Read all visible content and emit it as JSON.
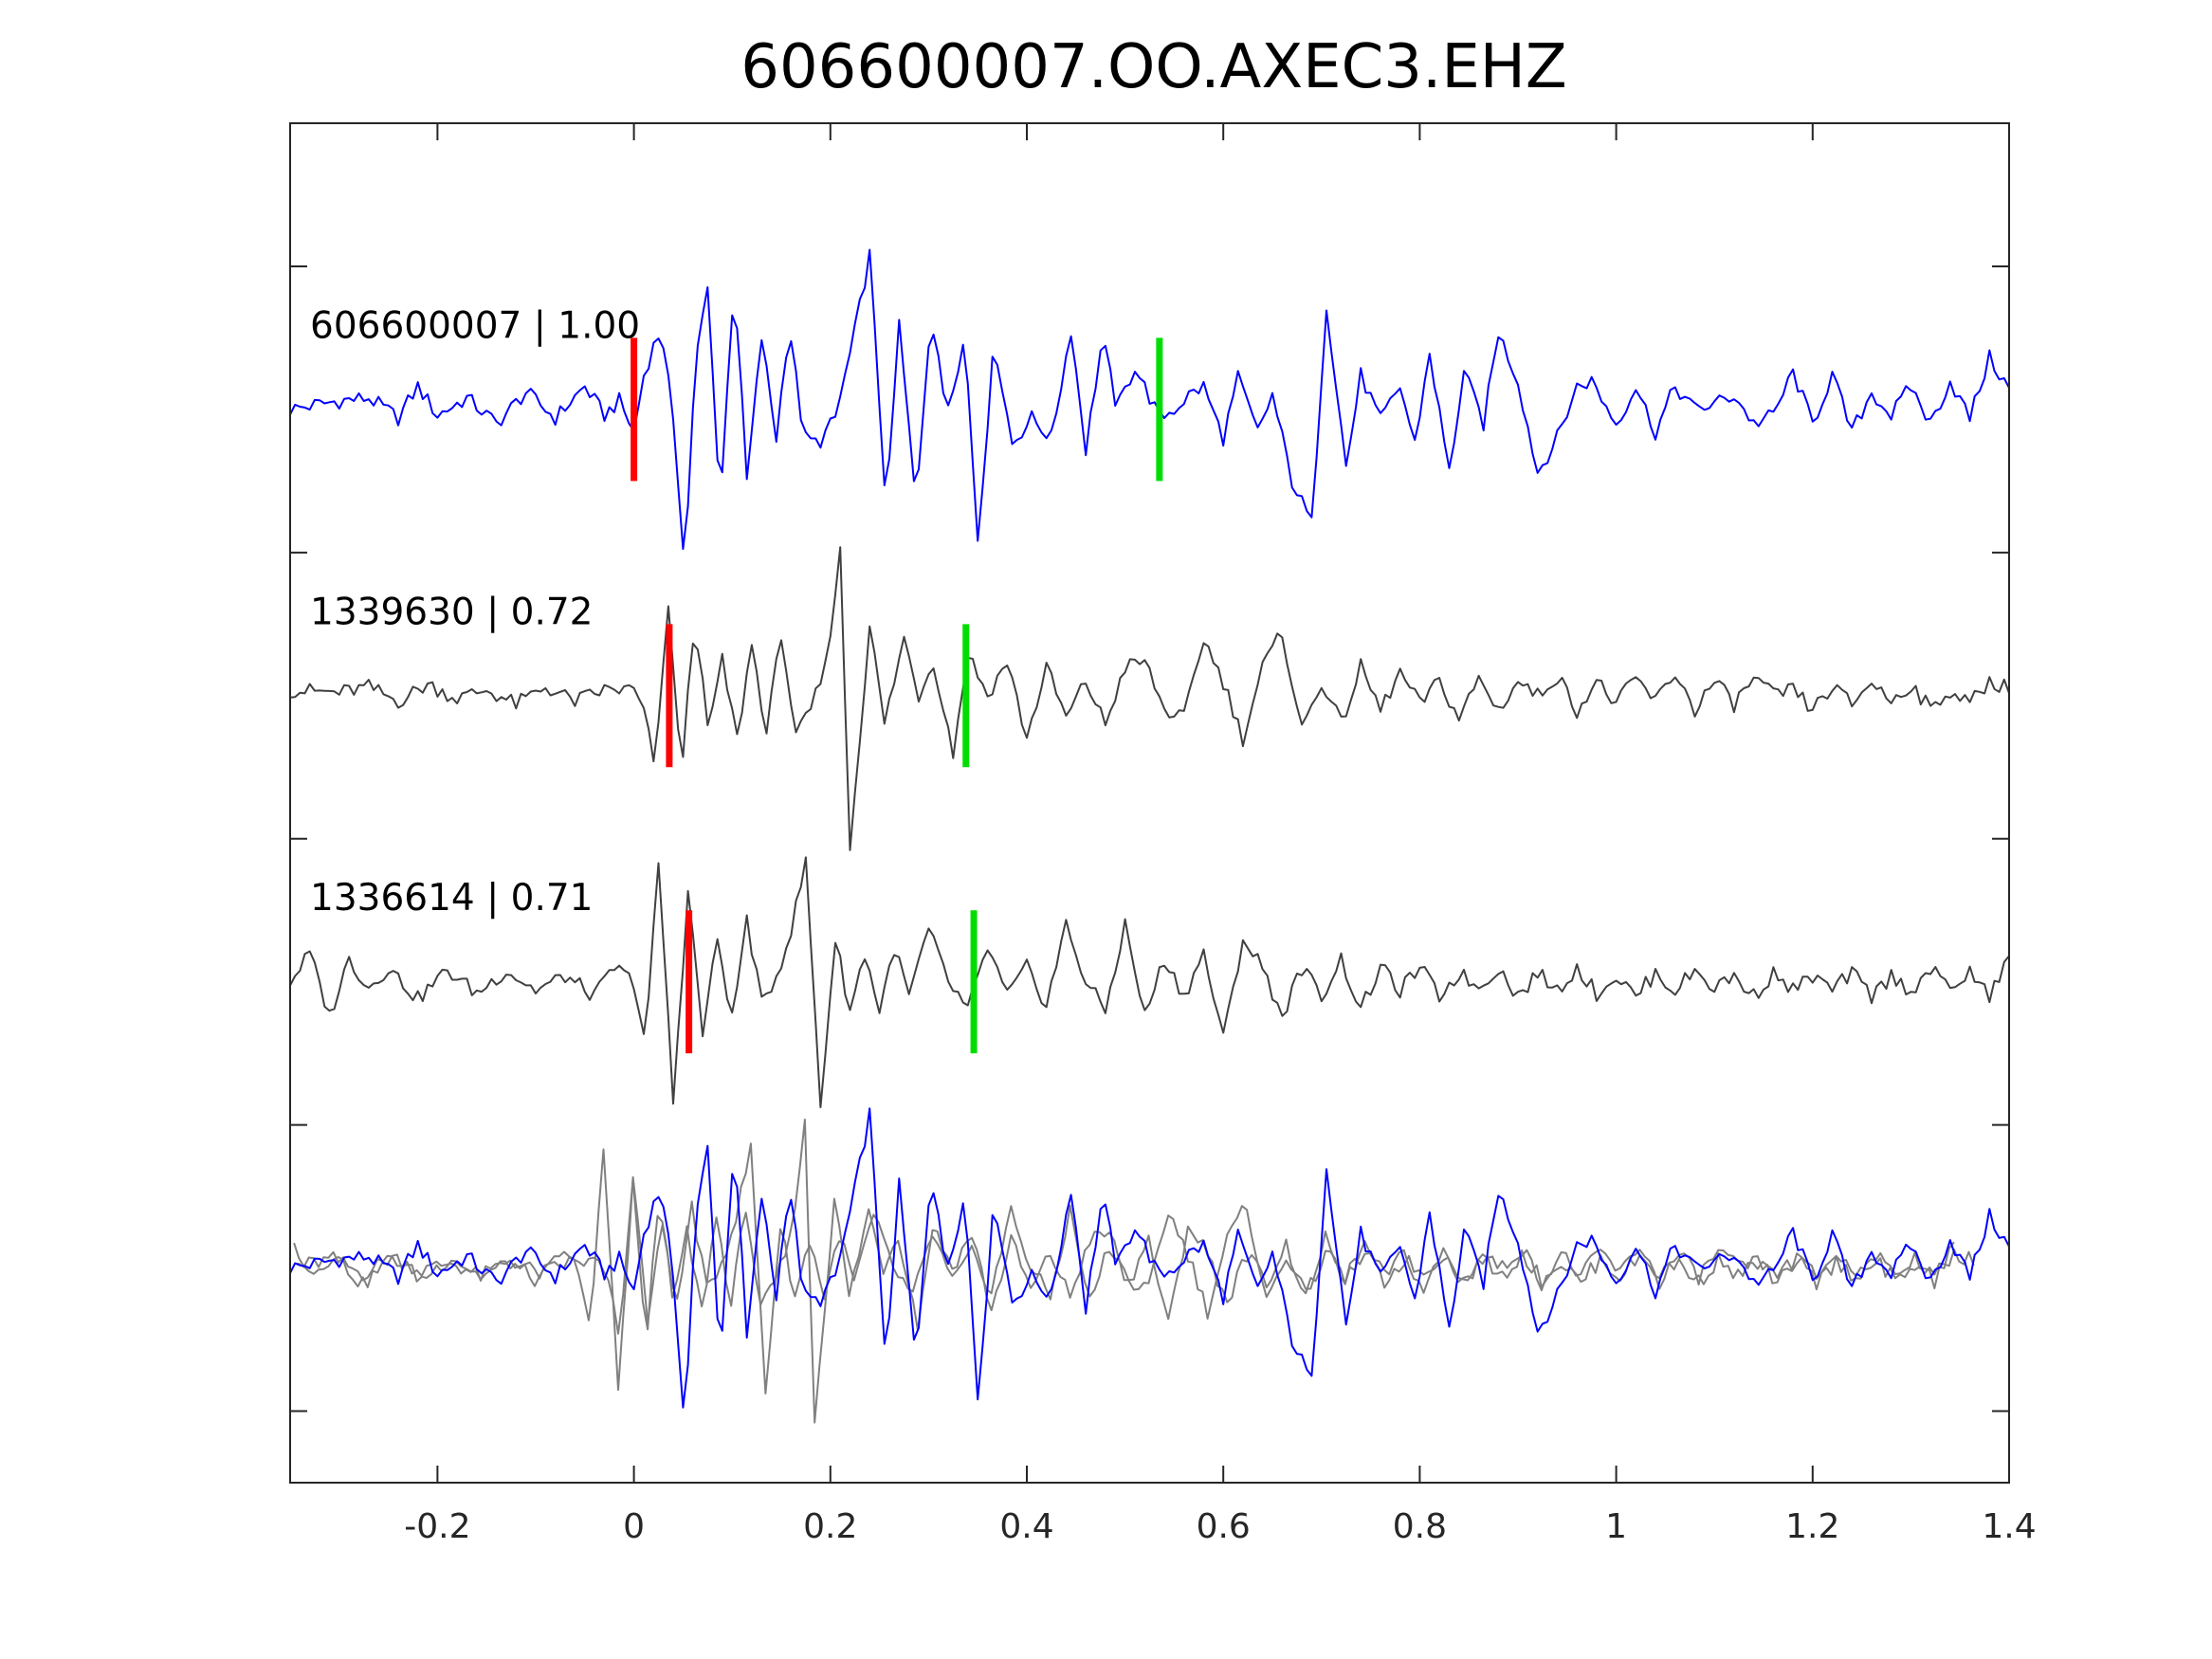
{
  "chart_data": {
    "type": "line",
    "title": "606600007.OO.AXEC3.EHZ",
    "xlabel": "",
    "ylabel": "",
    "xlim": [
      -0.35,
      1.4
    ],
    "xticks": [
      -0.2,
      0,
      0.2,
      0.4,
      0.6,
      0.8,
      1,
      1.2,
      1.4
    ],
    "xtick_labels": [
      "-0.2",
      "0",
      "0.2",
      "0.4",
      "0.6",
      "0.8",
      "1",
      "1.2",
      "1.4"
    ],
    "ylim": [
      0,
      4.75
    ],
    "yticks": [
      0.25,
      1.25,
      2.25,
      3.25,
      4.25
    ],
    "grid": false,
    "legend": "none",
    "colors": {
      "master": "#0000ff",
      "neighbor": "#404040",
      "overlay_neighbor": "#808080",
      "pick_p": "#ff0000",
      "pick_s": "#00dd00"
    },
    "sample_interval": 0.005,
    "trace_labels": [
      {
        "text": "606600007 | 1.00",
        "baseline": 3.75
      },
      {
        "text": "1339630 | 0.72",
        "baseline": 2.75
      },
      {
        "text": "1336614 | 0.71",
        "baseline": 1.75
      }
    ],
    "picks": [
      {
        "trace": "606600007",
        "phase": "P",
        "x": 0.0,
        "baseline": 3.75
      },
      {
        "trace": "606600007",
        "phase": "S",
        "x": 0.535,
        "baseline": 3.75
      },
      {
        "trace": "1339630",
        "phase": "P",
        "x": 0.036,
        "baseline": 2.75
      },
      {
        "trace": "1339630",
        "phase": "S",
        "x": 0.338,
        "baseline": 2.75
      },
      {
        "trace": "1336614",
        "phase": "P",
        "x": 0.056,
        "baseline": 1.75
      },
      {
        "trace": "1336614",
        "phase": "S",
        "x": 0.346,
        "baseline": 1.75
      }
    ],
    "series": [
      {
        "id": "606600007",
        "baseline": 3.75,
        "shift": 0,
        "knots": [
          [
            -0.35,
            0.0
          ],
          [
            -0.3,
            0.03
          ],
          [
            -0.27,
            0.04
          ],
          [
            -0.24,
            -0.03
          ],
          [
            -0.22,
            0.08
          ],
          [
            -0.2,
            -0.02
          ],
          [
            -0.17,
            0.04
          ],
          [
            -0.14,
            -0.05
          ],
          [
            -0.11,
            0.06
          ],
          [
            -0.08,
            -0.03
          ],
          [
            -0.05,
            0.08
          ],
          [
            -0.03,
            -0.02
          ],
          [
            -0.015,
            0.03
          ],
          [
            0.0,
            -0.08
          ],
          [
            0.01,
            0.12
          ],
          [
            0.02,
            0.22
          ],
          [
            0.028,
            0.28
          ],
          [
            0.037,
            0.05
          ],
          [
            0.045,
            -0.25
          ],
          [
            0.052,
            -0.55
          ],
          [
            0.062,
            0.15
          ],
          [
            0.075,
            0.42
          ],
          [
            0.088,
            -0.33
          ],
          [
            0.102,
            0.46
          ],
          [
            0.115,
            -0.25
          ],
          [
            0.13,
            0.25
          ],
          [
            0.145,
            -0.1
          ],
          [
            0.158,
            0.3
          ],
          [
            0.173,
            -0.1
          ],
          [
            0.188,
            -0.12
          ],
          [
            0.205,
            -0.03
          ],
          [
            0.222,
            0.22
          ],
          [
            0.24,
            0.54
          ],
          [
            0.257,
            -0.35
          ],
          [
            0.27,
            0.3
          ],
          [
            0.287,
            -0.33
          ],
          [
            0.302,
            0.33
          ],
          [
            0.318,
            0.0
          ],
          [
            0.337,
            0.25
          ],
          [
            0.35,
            -0.45
          ],
          [
            0.367,
            0.24
          ],
          [
            0.385,
            -0.12
          ],
          [
            0.405,
            -0.03
          ],
          [
            0.425,
            -0.1
          ],
          [
            0.445,
            0.28
          ],
          [
            0.46,
            -0.14
          ],
          [
            0.477,
            0.25
          ],
          [
            0.492,
            0.0
          ],
          [
            0.51,
            0.15
          ],
          [
            0.535,
            -0.03
          ],
          [
            0.55,
            0.0
          ],
          [
            0.565,
            0.05
          ],
          [
            0.58,
            0.08
          ],
          [
            0.6,
            -0.1
          ],
          [
            0.615,
            0.11
          ],
          [
            0.635,
            -0.08
          ],
          [
            0.65,
            0.05
          ],
          [
            0.67,
            -0.25
          ],
          [
            0.69,
            -0.4
          ],
          [
            0.705,
            0.37
          ],
          [
            0.725,
            -0.2
          ],
          [
            0.74,
            0.12
          ],
          [
            0.76,
            -0.04
          ],
          [
            0.78,
            0.08
          ],
          [
            0.795,
            -0.12
          ],
          [
            0.81,
            0.2
          ],
          [
            0.83,
            -0.22
          ],
          [
            0.845,
            0.13
          ],
          [
            0.865,
            -0.05
          ],
          [
            0.88,
            0.27
          ],
          [
            0.9,
            0.1
          ],
          [
            0.92,
            -0.22
          ],
          [
            0.94,
            -0.1
          ],
          [
            0.96,
            0.08
          ],
          [
            0.975,
            0.1
          ],
          [
            1.0,
            -0.05
          ],
          [
            1.02,
            0.08
          ],
          [
            1.04,
            -0.08
          ],
          [
            1.06,
            0.08
          ],
          [
            1.08,
            0.0
          ],
          [
            1.1,
            0.02
          ],
          [
            1.12,
            0.05
          ],
          [
            1.14,
            -0.05
          ],
          [
            1.16,
            -0.02
          ],
          [
            1.18,
            0.13
          ],
          [
            1.2,
            -0.05
          ],
          [
            1.22,
            0.12
          ],
          [
            1.24,
            -0.08
          ],
          [
            1.26,
            0.06
          ],
          [
            1.28,
            -0.02
          ],
          [
            1.3,
            0.08
          ],
          [
            1.32,
            -0.05
          ],
          [
            1.34,
            0.1
          ],
          [
            1.36,
            -0.03
          ],
          [
            1.38,
            0.18
          ],
          [
            1.4,
            0.07
          ]
        ]
      },
      {
        "id": "1339630",
        "baseline": 2.75,
        "shift": 0.036,
        "knots": [
          [
            -0.35,
            0.02
          ],
          [
            -0.3,
            0.01
          ],
          [
            -0.27,
            0.03
          ],
          [
            -0.24,
            -0.02
          ],
          [
            -0.21,
            0.04
          ],
          [
            -0.18,
            -0.01
          ],
          [
            -0.15,
            0.02
          ],
          [
            -0.12,
            -0.03
          ],
          [
            -0.09,
            0.03
          ],
          [
            -0.06,
            -0.02
          ],
          [
            -0.03,
            0.02
          ],
          [
            0.0,
            0.02
          ],
          [
            0.01,
            -0.06
          ],
          [
            0.022,
            -0.25
          ],
          [
            0.035,
            0.33
          ],
          [
            0.048,
            -0.28
          ],
          [
            0.062,
            0.28
          ],
          [
            0.075,
            -0.12
          ],
          [
            0.09,
            0.12
          ],
          [
            0.105,
            -0.15
          ],
          [
            0.12,
            0.18
          ],
          [
            0.135,
            -0.13
          ],
          [
            0.15,
            0.22
          ],
          [
            0.165,
            -0.15
          ],
          [
            0.18,
            -0.05
          ],
          [
            0.195,
            0.1
          ],
          [
            0.21,
            0.5
          ],
          [
            0.22,
            -0.53
          ],
          [
            0.24,
            0.25
          ],
          [
            0.255,
            -0.1
          ],
          [
            0.275,
            0.2
          ],
          [
            0.29,
            0.0
          ],
          [
            0.305,
            0.12
          ],
          [
            0.325,
            -0.2
          ],
          [
            0.34,
            0.15
          ],
          [
            0.36,
            0.0
          ],
          [
            0.38,
            0.12
          ],
          [
            0.4,
            -0.15
          ],
          [
            0.42,
            0.1
          ],
          [
            0.44,
            -0.08
          ],
          [
            0.46,
            0.05
          ],
          [
            0.48,
            -0.1
          ],
          [
            0.5,
            0.1
          ],
          [
            0.52,
            0.12
          ],
          [
            0.54,
            -0.05
          ],
          [
            0.56,
            -0.08
          ],
          [
            0.58,
            0.2
          ],
          [
            0.6,
            0.05
          ],
          [
            0.62,
            -0.15
          ],
          [
            0.64,
            0.1
          ],
          [
            0.66,
            0.22
          ],
          [
            0.68,
            -0.12
          ],
          [
            0.7,
            0.05
          ],
          [
            0.72,
            -0.1
          ],
          [
            0.74,
            0.1
          ],
          [
            0.76,
            -0.05
          ],
          [
            0.78,
            0.08
          ],
          [
            0.8,
            -0.03
          ],
          [
            0.82,
            0.05
          ],
          [
            0.84,
            -0.08
          ],
          [
            0.86,
            0.06
          ],
          [
            0.88,
            -0.05
          ],
          [
            0.9,
            0.05
          ],
          [
            0.92,
            0.0
          ],
          [
            0.94,
            0.07
          ],
          [
            0.96,
            -0.05
          ],
          [
            0.98,
            0.05
          ],
          [
            1.0,
            -0.03
          ],
          [
            1.02,
            0.06
          ],
          [
            1.04,
            -0.02
          ],
          [
            1.06,
            0.08
          ],
          [
            1.08,
            -0.05
          ],
          [
            1.1,
            0.05
          ],
          [
            1.12,
            -0.03
          ],
          [
            1.14,
            0.06
          ],
          [
            1.16,
            0.0
          ],
          [
            1.18,
            0.02
          ],
          [
            1.2,
            -0.05
          ],
          [
            1.22,
            0.03
          ],
          [
            1.24,
            -0.03
          ],
          [
            1.26,
            0.05
          ],
          [
            1.28,
            -0.02
          ],
          [
            1.3,
            0.04
          ],
          [
            1.32,
            -0.05
          ],
          [
            1.34,
            0.02
          ],
          [
            1.36,
            -0.03
          ],
          [
            1.38,
            0.05
          ],
          [
            1.4,
            0.03
          ]
        ]
      },
      {
        "id": "1336614",
        "baseline": 1.75,
        "shift": 0.056,
        "knots": [
          [
            -0.35,
            0.0
          ],
          [
            -0.33,
            0.1
          ],
          [
            -0.31,
            -0.12
          ],
          [
            -0.29,
            0.08
          ],
          [
            -0.27,
            -0.02
          ],
          [
            -0.25,
            0.05
          ],
          [
            -0.22,
            -0.06
          ],
          [
            -0.19,
            0.04
          ],
          [
            -0.16,
            -0.04
          ],
          [
            -0.13,
            0.04
          ],
          [
            -0.1,
            -0.03
          ],
          [
            -0.07,
            0.02
          ],
          [
            -0.04,
            -0.05
          ],
          [
            -0.02,
            0.05
          ],
          [
            0.0,
            0.0
          ],
          [
            0.012,
            -0.22
          ],
          [
            0.025,
            0.42
          ],
          [
            0.04,
            -0.42
          ],
          [
            0.055,
            0.32
          ],
          [
            0.07,
            -0.18
          ],
          [
            0.085,
            0.15
          ],
          [
            0.1,
            -0.13
          ],
          [
            0.115,
            0.22
          ],
          [
            0.13,
            -0.08
          ],
          [
            0.145,
            0.02
          ],
          [
            0.16,
            0.18
          ],
          [
            0.175,
            0.42
          ],
          [
            0.19,
            -0.43
          ],
          [
            0.205,
            0.15
          ],
          [
            0.22,
            -0.1
          ],
          [
            0.235,
            0.1
          ],
          [
            0.25,
            -0.1
          ],
          [
            0.265,
            0.12
          ],
          [
            0.28,
            -0.05
          ],
          [
            0.3,
            0.18
          ],
          [
            0.32,
            0.0
          ],
          [
            0.34,
            -0.1
          ],
          [
            0.36,
            0.12
          ],
          [
            0.38,
            -0.05
          ],
          [
            0.4,
            0.05
          ],
          [
            0.42,
            -0.08
          ],
          [
            0.44,
            0.2
          ],
          [
            0.46,
            0.0
          ],
          [
            0.48,
            -0.1
          ],
          [
            0.5,
            0.2
          ],
          [
            0.52,
            -0.12
          ],
          [
            0.54,
            0.08
          ],
          [
            0.56,
            -0.05
          ],
          [
            0.58,
            0.1
          ],
          [
            0.6,
            -0.2
          ],
          [
            0.62,
            0.15
          ],
          [
            0.64,
            0.05
          ],
          [
            0.66,
            -0.12
          ],
          [
            0.68,
            0.05
          ],
          [
            0.7,
            -0.05
          ],
          [
            0.72,
            0.08
          ],
          [
            0.74,
            -0.1
          ],
          [
            0.76,
            0.05
          ],
          [
            0.78,
            -0.03
          ],
          [
            0.8,
            0.05
          ],
          [
            0.82,
            -0.05
          ],
          [
            0.84,
            0.03
          ],
          [
            0.86,
            -0.02
          ],
          [
            0.88,
            0.05
          ],
          [
            0.9,
            -0.05
          ],
          [
            0.92,
            0.03
          ],
          [
            0.94,
            -0.03
          ],
          [
            0.96,
            0.05
          ],
          [
            0.98,
            -0.04
          ],
          [
            1.0,
            0.02
          ],
          [
            1.02,
            -0.05
          ],
          [
            1.04,
            0.03
          ],
          [
            1.06,
            -0.03
          ],
          [
            1.08,
            0.04
          ],
          [
            1.1,
            -0.02
          ],
          [
            1.12,
            0.02
          ],
          [
            1.14,
            -0.05
          ],
          [
            1.16,
            0.03
          ],
          [
            1.18,
            -0.03
          ],
          [
            1.2,
            0.02
          ],
          [
            1.22,
            -0.03
          ],
          [
            1.24,
            0.03
          ],
          [
            1.26,
            -0.05
          ],
          [
            1.28,
            0.02
          ],
          [
            1.3,
            -0.03
          ],
          [
            1.32,
            0.04
          ],
          [
            1.34,
            -0.02
          ],
          [
            1.36,
            0.03
          ],
          [
            1.38,
            -0.05
          ],
          [
            1.4,
            0.08
          ]
        ]
      }
    ],
    "overlay": {
      "baseline": 0.75,
      "members": [
        "1339630",
        "1336614",
        "606600007"
      ]
    }
  }
}
